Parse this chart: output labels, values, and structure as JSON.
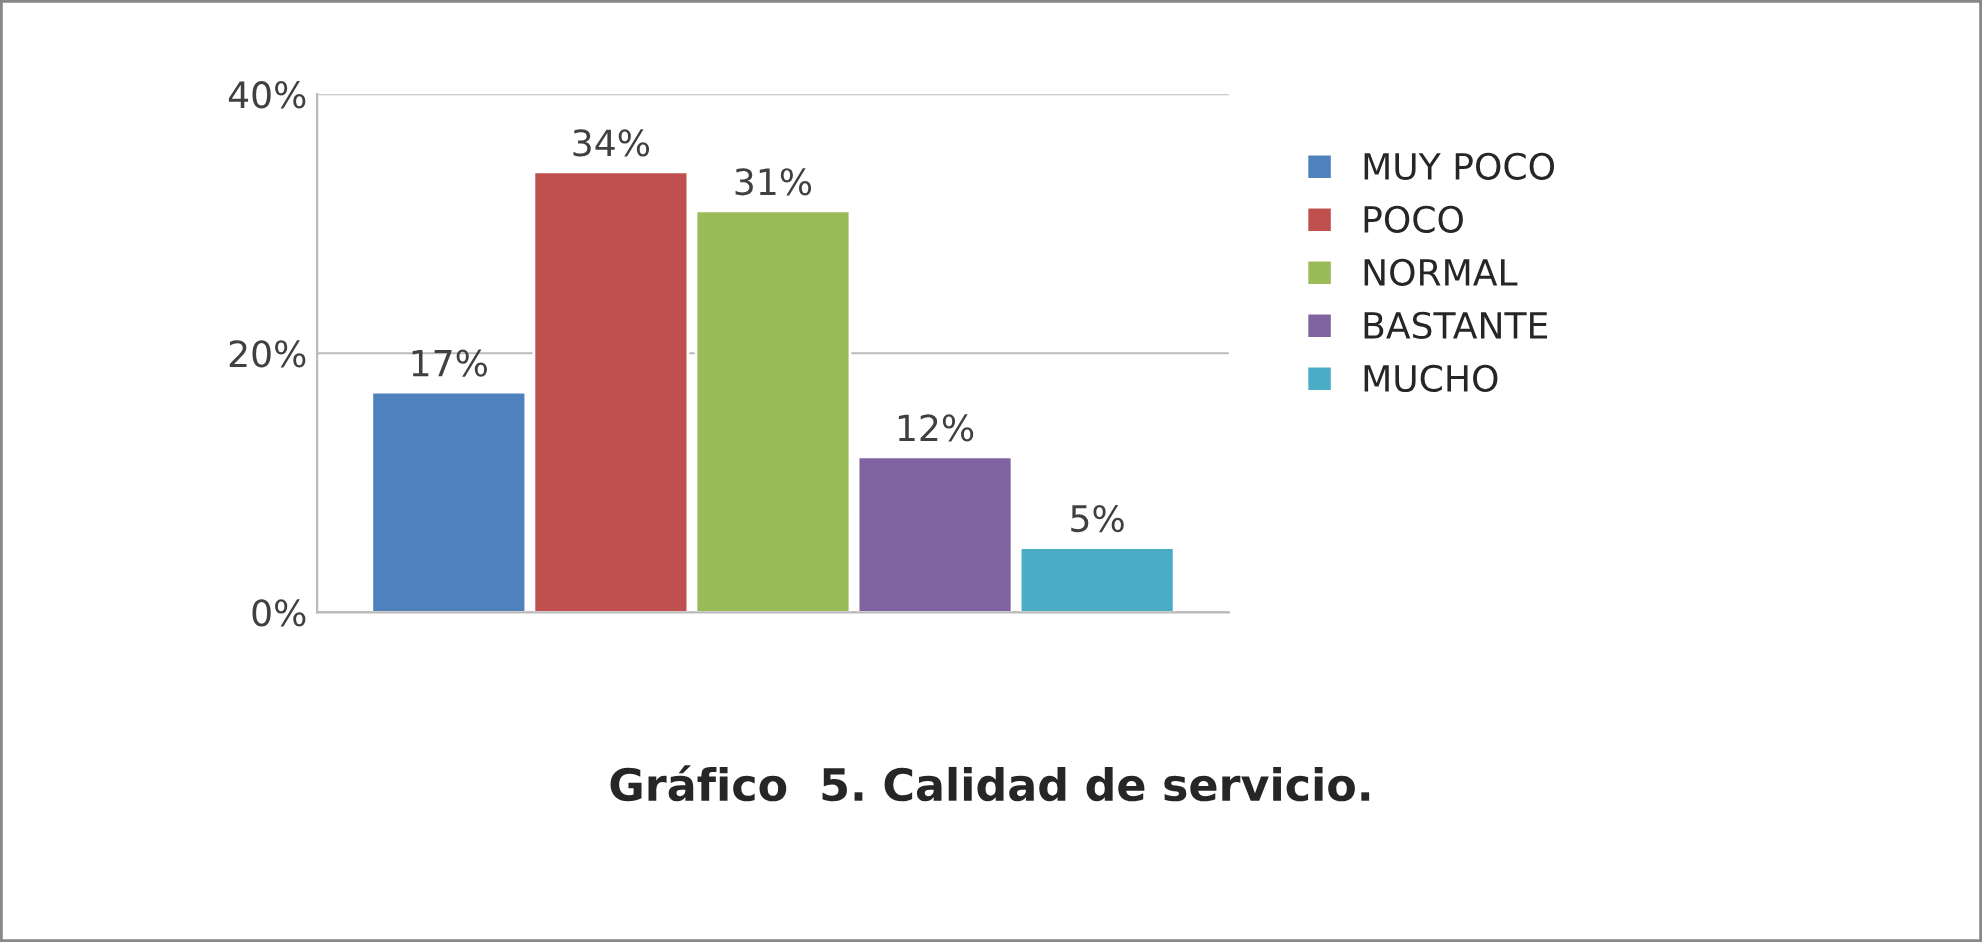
{
  "chart_data": {
    "type": "bar",
    "title": "Gráfico  5. Calidad de servicio.",
    "categories": [
      null
    ],
    "series": [
      {
        "name": "MUY POCO",
        "color": "#4f81bd",
        "values": [
          17
        ],
        "value_labels": [
          "17%"
        ]
      },
      {
        "name": "POCO",
        "color": "#c0504d",
        "values": [
          34
        ],
        "value_labels": [
          "34%"
        ]
      },
      {
        "name": "NORMAL",
        "color": "#9bbb59",
        "values": [
          31
        ],
        "value_labels": [
          "31%"
        ]
      },
      {
        "name": "BASTANTE",
        "color": "#8064a2",
        "values": [
          12
        ],
        "value_labels": [
          "12%"
        ]
      },
      {
        "name": "MUCHO",
        "color": "#4bacc6",
        "values": [
          5
        ],
        "value_labels": [
          "5%"
        ]
      }
    ],
    "ylim": [
      0,
      40
    ],
    "yticks": [
      {
        "value": 0,
        "label": "0%"
      },
      {
        "value": 20,
        "label": "20%"
      },
      {
        "value": 40,
        "label": "40%"
      }
    ],
    "grid": "y",
    "legend": "right"
  }
}
